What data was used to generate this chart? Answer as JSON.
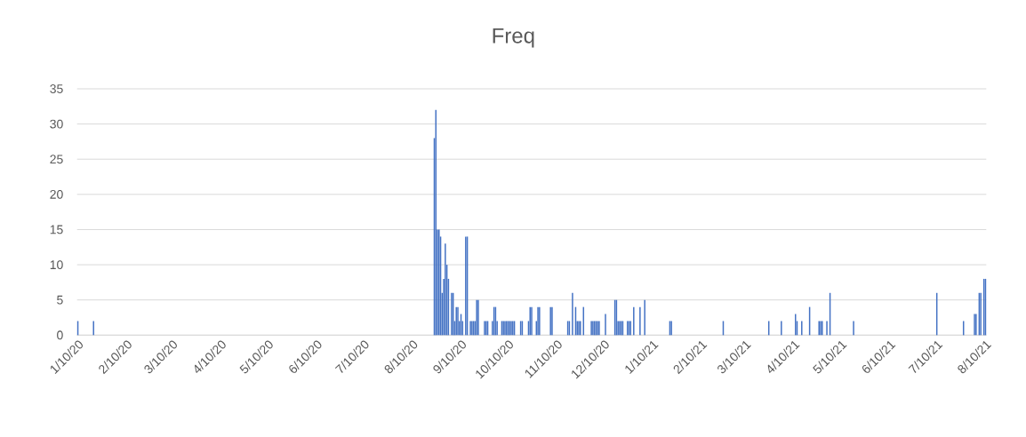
{
  "chart_data": {
    "type": "bar",
    "title": "Freq",
    "color": "#4472c4",
    "grid": "y",
    "x": [
      "2020-01-10",
      "2020-01-20",
      "2020-08-24",
      "2020-08-25",
      "2020-08-26",
      "2020-08-27",
      "2020-08-28",
      "2020-08-29",
      "2020-08-30",
      "2020-08-31",
      "2020-09-01",
      "2020-09-02",
      "2020-09-04",
      "2020-09-05",
      "2020-09-06",
      "2020-09-07",
      "2020-09-08",
      "2020-09-09",
      "2020-09-10",
      "2020-09-11",
      "2020-09-13",
      "2020-09-14",
      "2020-09-16",
      "2020-09-17",
      "2020-09-18",
      "2020-09-19",
      "2020-09-20",
      "2020-09-21",
      "2020-09-25",
      "2020-09-26",
      "2020-09-27",
      "2020-09-30",
      "2020-10-01",
      "2020-10-02",
      "2020-10-03",
      "2020-10-06",
      "2020-10-07",
      "2020-10-08",
      "2020-10-09",
      "2020-10-10",
      "2020-10-11",
      "2020-10-12",
      "2020-10-13",
      "2020-10-14",
      "2020-10-18",
      "2020-10-19",
      "2020-10-23",
      "2020-10-24",
      "2020-10-25",
      "2020-10-28",
      "2020-10-29",
      "2020-10-30",
      "2020-11-06",
      "2020-11-07",
      "2020-11-17",
      "2020-11-18",
      "2020-11-20",
      "2020-11-22",
      "2020-11-23",
      "2020-11-24",
      "2020-11-25",
      "2020-11-27",
      "2020-12-02",
      "2020-12-03",
      "2020-12-04",
      "2020-12-05",
      "2020-12-06",
      "2020-12-07",
      "2020-12-11",
      "2020-12-17",
      "2020-12-18",
      "2020-12-19",
      "2020-12-20",
      "2020-12-21",
      "2020-12-22",
      "2020-12-25",
      "2020-12-26",
      "2020-12-27",
      "2020-12-29",
      "2021-01-02",
      "2021-01-05",
      "2021-01-21",
      "2021-01-22",
      "2021-02-24",
      "2021-03-25",
      "2021-04-02",
      "2021-04-11",
      "2021-04-12",
      "2021-04-15",
      "2021-04-20",
      "2021-04-26",
      "2021-04-27",
      "2021-04-28",
      "2021-05-01",
      "2021-05-03",
      "2021-05-18",
      "2021-07-10",
      "2021-07-27",
      "2021-08-03",
      "2021-08-04",
      "2021-08-06",
      "2021-08-07",
      "2021-08-09",
      "2021-08-10"
    ],
    "values": [
      2,
      2,
      28,
      32,
      15,
      15,
      14,
      6,
      8,
      13,
      10,
      8,
      6,
      6,
      2,
      4,
      4,
      2,
      3,
      2,
      14,
      14,
      2,
      2,
      2,
      2,
      5,
      5,
      2,
      2,
      2,
      2,
      4,
      4,
      2,
      2,
      2,
      2,
      2,
      2,
      2,
      2,
      2,
      2,
      2,
      2,
      2,
      4,
      4,
      2,
      4,
      4,
      4,
      4,
      2,
      2,
      6,
      4,
      2,
      2,
      2,
      4,
      2,
      2,
      2,
      2,
      2,
      2,
      3,
      5,
      5,
      2,
      2,
      2,
      2,
      2,
      2,
      2,
      4,
      4,
      5,
      2,
      2,
      2,
      2,
      2,
      3,
      2,
      2,
      4,
      2,
      2,
      2,
      2,
      6,
      2,
      6,
      2,
      3,
      3,
      6,
      6,
      8,
      8
    ],
    "xlim": [
      "2020-01-10",
      "2021-08-10"
    ],
    "xticks": [
      {
        "value": "2020-01-10",
        "label": "1/10/20"
      },
      {
        "value": "2020-02-10",
        "label": "2/10/20"
      },
      {
        "value": "2020-03-10",
        "label": "3/10/20"
      },
      {
        "value": "2020-04-10",
        "label": "4/10/20"
      },
      {
        "value": "2020-05-10",
        "label": "5/10/20"
      },
      {
        "value": "2020-06-10",
        "label": "6/10/20"
      },
      {
        "value": "2020-07-10",
        "label": "7/10/20"
      },
      {
        "value": "2020-08-10",
        "label": "8/10/20"
      },
      {
        "value": "2020-09-10",
        "label": "9/10/20"
      },
      {
        "value": "2020-10-10",
        "label": "10/10/20"
      },
      {
        "value": "2020-11-10",
        "label": "11/10/20"
      },
      {
        "value": "2020-12-10",
        "label": "12/10/20"
      },
      {
        "value": "2021-01-10",
        "label": "1/10/21"
      },
      {
        "value": "2021-02-10",
        "label": "2/10/21"
      },
      {
        "value": "2021-03-10",
        "label": "3/10/21"
      },
      {
        "value": "2021-04-10",
        "label": "4/10/21"
      },
      {
        "value": "2021-05-10",
        "label": "5/10/21"
      },
      {
        "value": "2021-06-10",
        "label": "6/10/21"
      },
      {
        "value": "2021-07-10",
        "label": "7/10/21"
      },
      {
        "value": "2021-08-10",
        "label": "8/10/21"
      }
    ],
    "ylim": [
      0,
      35
    ],
    "yticks": [
      0,
      5,
      10,
      15,
      20,
      25,
      30,
      35
    ]
  }
}
